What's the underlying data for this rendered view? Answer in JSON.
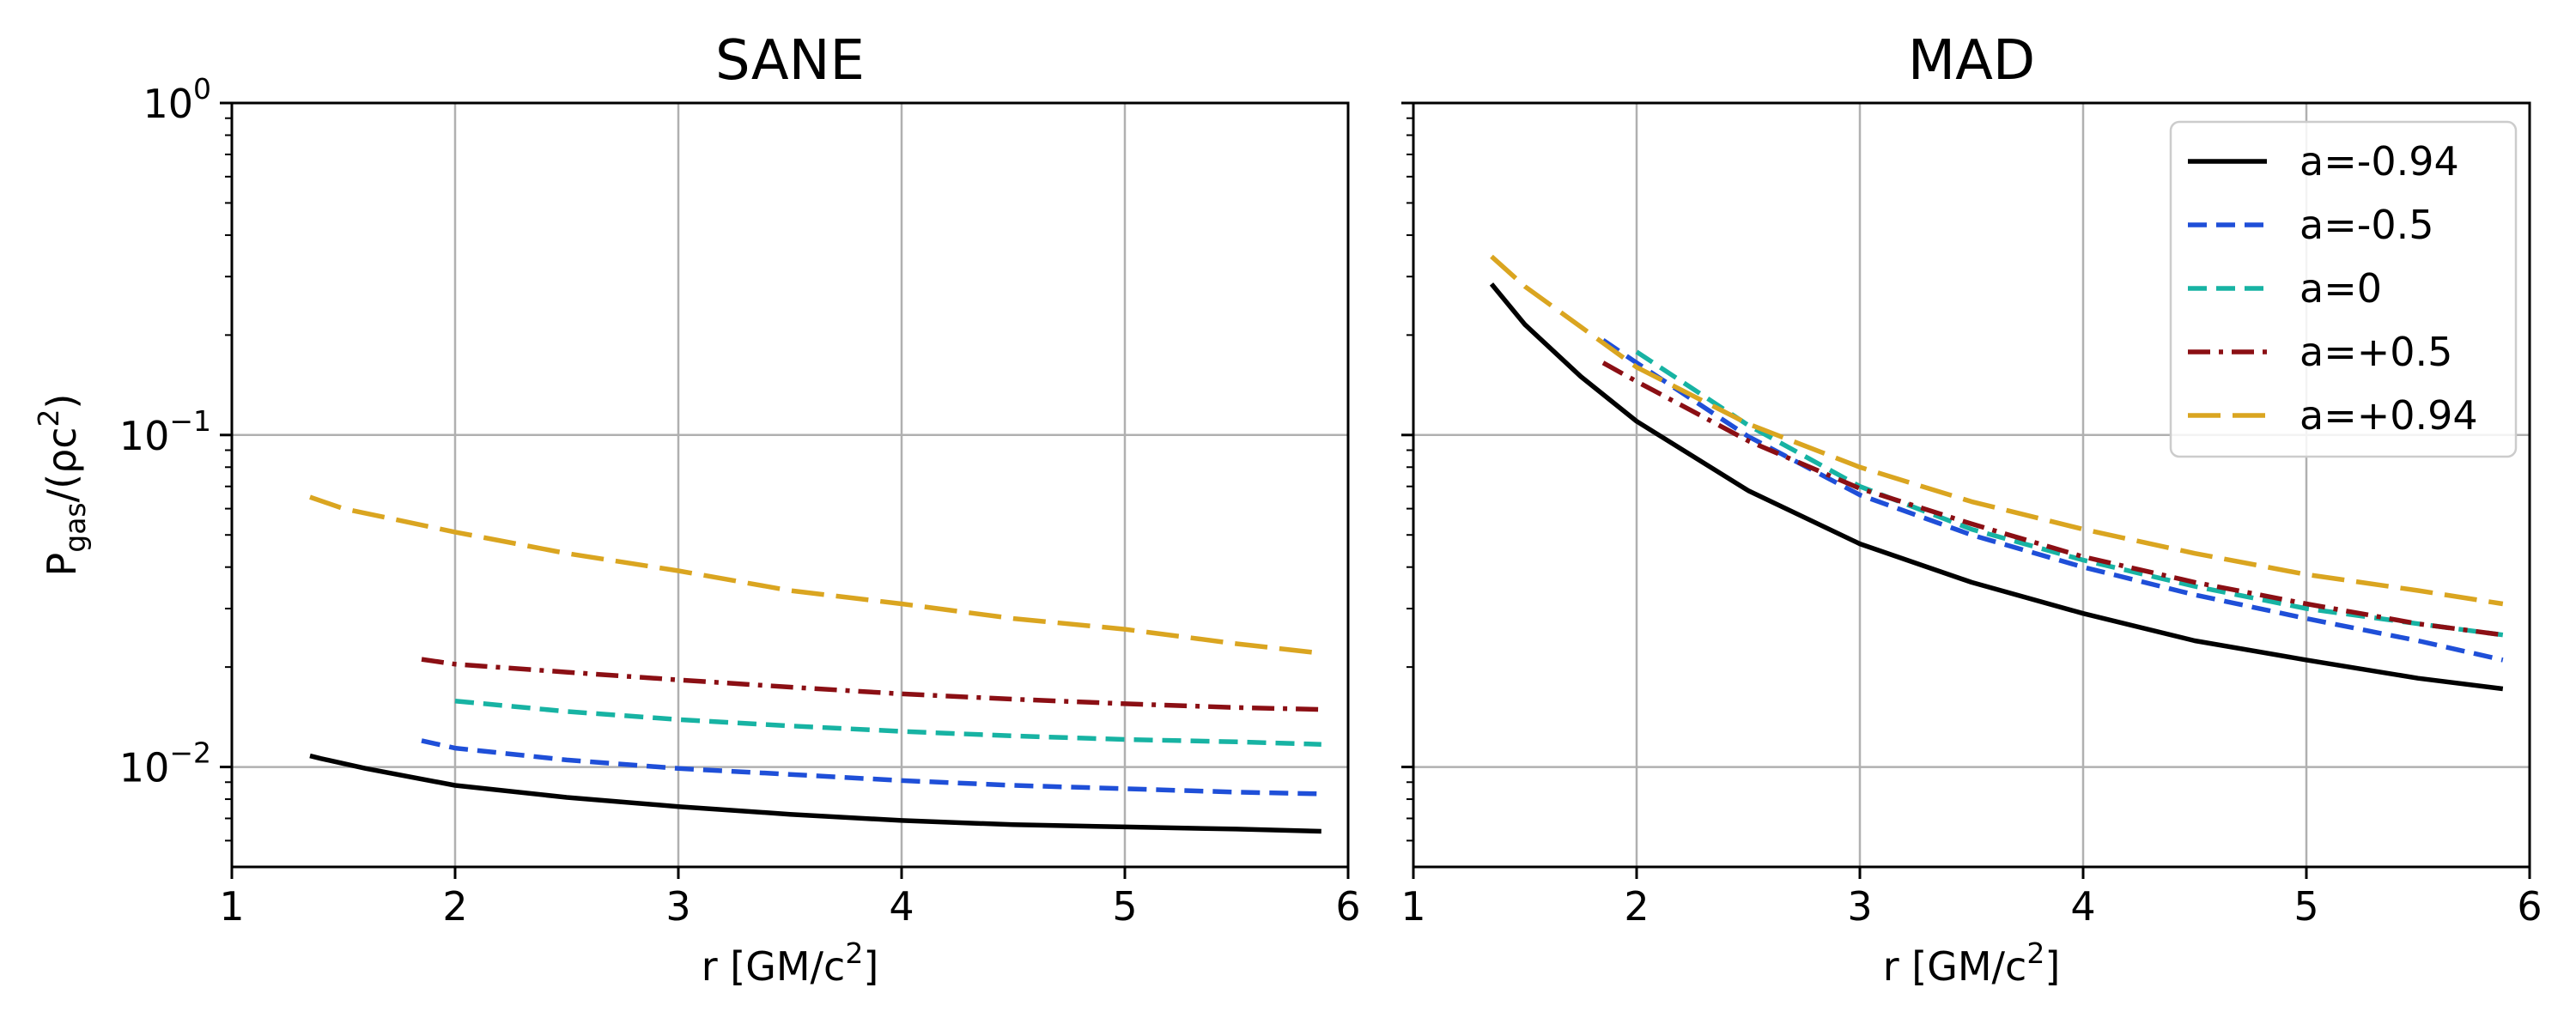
{
  "chart_data": [
    {
      "type": "line",
      "title": "SANE",
      "xlabel": "r [GM/c²]",
      "ylabel": "Pgas/(ρc²)",
      "ylabel_parts": {
        "main": "P",
        "sub": "gas",
        "rest": "/(ρc",
        "sup": "2",
        "end": ")"
      },
      "xlabel_parts": {
        "main": "r [GM/c",
        "sup": "2",
        "end": "]"
      },
      "xlim": [
        1,
        6
      ],
      "ylim": [
        0.005,
        1.0
      ],
      "yscale": "log",
      "grid": true,
      "x_ticks": [
        1,
        2,
        3,
        4,
        5,
        6
      ],
      "x_tick_labels": [
        "1",
        "2",
        "3",
        "4",
        "5",
        "6"
      ],
      "y_ticks": [
        {
          "value": 1.0,
          "base": "10",
          "exp": "0"
        },
        {
          "value": 0.1,
          "base": "10",
          "exp": "−1"
        },
        {
          "value": 0.01,
          "base": "10",
          "exp": "−2"
        }
      ],
      "series": [
        {
          "name": "a=-0.94",
          "color": "#000000",
          "style": "solid",
          "x": [
            1.35,
            1.4,
            1.6,
            2.0,
            2.5,
            3.0,
            3.5,
            4.0,
            4.5,
            5.0,
            5.5,
            5.88
          ],
          "y": [
            0.0108,
            0.0106,
            0.0099,
            0.0088,
            0.0081,
            0.0076,
            0.0072,
            0.0069,
            0.0067,
            0.0066,
            0.0065,
            0.0064
          ]
        },
        {
          "name": "a=-0.5",
          "color": "#1f4fd8",
          "style": "dash",
          "x": [
            1.85,
            2.0,
            2.5,
            3.0,
            3.5,
            4.0,
            4.5,
            5.0,
            5.5,
            5.88
          ],
          "y": [
            0.012,
            0.0114,
            0.0105,
            0.0099,
            0.0095,
            0.0091,
            0.0088,
            0.0086,
            0.0084,
            0.0083
          ]
        },
        {
          "name": "a=0",
          "color": "#17b3a3",
          "style": "dash",
          "x": [
            2.0,
            2.5,
            3.0,
            3.5,
            4.0,
            4.5,
            5.0,
            5.5,
            5.88
          ],
          "y": [
            0.0158,
            0.0147,
            0.0139,
            0.0133,
            0.0128,
            0.0124,
            0.0121,
            0.0119,
            0.0117
          ]
        },
        {
          "name": "a=+0.5",
          "color": "#8b0f14",
          "style": "dashdot",
          "x": [
            1.85,
            2.0,
            2.5,
            3.0,
            3.5,
            4.0,
            4.5,
            5.0,
            5.5,
            5.88
          ],
          "y": [
            0.0211,
            0.0204,
            0.0193,
            0.0183,
            0.0174,
            0.0166,
            0.016,
            0.0155,
            0.0151,
            0.0149
          ]
        },
        {
          "name": "a=+0.94",
          "color": "#daa520",
          "style": "longdash",
          "x": [
            1.35,
            1.5,
            2.0,
            2.5,
            3.0,
            3.5,
            4.0,
            4.5,
            5.0,
            5.5,
            5.88
          ],
          "y": [
            0.065,
            0.06,
            0.051,
            0.044,
            0.039,
            0.034,
            0.031,
            0.028,
            0.026,
            0.0235,
            0.022
          ]
        }
      ]
    },
    {
      "type": "line",
      "title": "MAD",
      "xlabel": "r [GM/c²]",
      "xlabel_parts": {
        "main": "r [GM/c",
        "sup": "2",
        "end": "]"
      },
      "xlim": [
        1,
        6
      ],
      "ylim": [
        0.005,
        1.0
      ],
      "yscale": "log",
      "grid": true,
      "legend_position": "top-right",
      "x_ticks": [
        1,
        2,
        3,
        4,
        5,
        6
      ],
      "x_tick_labels": [
        "1",
        "2",
        "3",
        "4",
        "5",
        "6"
      ],
      "series": [
        {
          "name": "a=-0.94",
          "color": "#000000",
          "style": "solid",
          "x": [
            1.35,
            1.5,
            1.75,
            2.0,
            2.5,
            3.0,
            3.5,
            4.0,
            4.5,
            5.0,
            5.5,
            5.88
          ],
          "y": [
            0.285,
            0.215,
            0.15,
            0.11,
            0.068,
            0.047,
            0.036,
            0.029,
            0.024,
            0.021,
            0.0185,
            0.0172
          ]
        },
        {
          "name": "a=-0.5",
          "color": "#1f4fd8",
          "style": "dash",
          "x": [
            1.85,
            2.0,
            2.5,
            3.0,
            3.5,
            4.0,
            4.5,
            5.0,
            5.5,
            5.88
          ],
          "y": [
            0.193,
            0.165,
            0.099,
            0.066,
            0.05,
            0.04,
            0.033,
            0.028,
            0.024,
            0.021
          ]
        },
        {
          "name": "a=0",
          "color": "#17b3a3",
          "style": "dash",
          "x": [
            2.0,
            2.5,
            3.0,
            3.5,
            4.0,
            4.5,
            5.0,
            5.5,
            5.88
          ],
          "y": [
            0.178,
            0.107,
            0.07,
            0.052,
            0.042,
            0.035,
            0.03,
            0.027,
            0.025
          ]
        },
        {
          "name": "a=+0.5",
          "color": "#8b0f14",
          "style": "dashdot",
          "x": [
            1.85,
            2.0,
            2.5,
            3.0,
            3.5,
            4.0,
            4.5,
            5.0,
            5.5,
            5.88
          ],
          "y": [
            0.165,
            0.145,
            0.096,
            0.069,
            0.054,
            0.043,
            0.036,
            0.031,
            0.027,
            0.025
          ]
        },
        {
          "name": "a=+0.94",
          "color": "#daa520",
          "style": "longdash",
          "x": [
            1.35,
            1.5,
            2.0,
            2.5,
            3.0,
            3.5,
            4.0,
            4.5,
            5.0,
            5.5,
            5.88
          ],
          "y": [
            0.345,
            0.28,
            0.16,
            0.108,
            0.08,
            0.063,
            0.052,
            0.044,
            0.038,
            0.034,
            0.031
          ]
        }
      ]
    }
  ]
}
